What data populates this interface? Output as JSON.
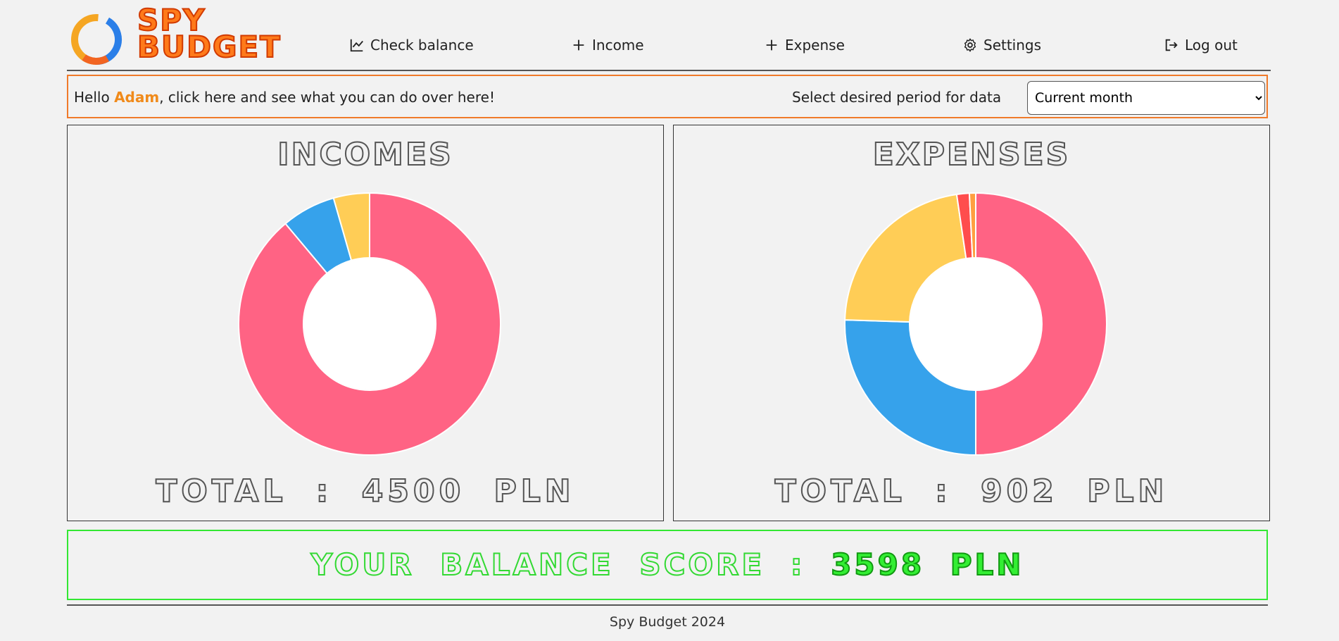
{
  "brand": {
    "line1": "SPY",
    "line2": "BUDGET"
  },
  "nav": {
    "check_balance": "Check balance",
    "income": "Income",
    "expense": "Expense",
    "settings": "Settings",
    "logout": "Log out",
    "icons": [
      "chart-line-icon",
      "plus-icon",
      "plus-icon",
      "gear-icon",
      "logout-icon"
    ]
  },
  "greeting": {
    "prefix": "Hello ",
    "name": "Adam",
    "suffix": ", click here and see what you can do over here!"
  },
  "period": {
    "label": "Select desired period for data",
    "selected": "Current month"
  },
  "incomes": {
    "title": "INCOMES",
    "total_label": "TOTAL :",
    "total_value": "4500 PLN"
  },
  "expenses": {
    "title": "EXPENSES",
    "total_label": "TOTAL :",
    "total_value": "902 PLN"
  },
  "balance": {
    "label": "YOUR BALANCE SCORE :",
    "value": "3598 PLN",
    "color": "#33ee33"
  },
  "footer": {
    "text": "Spy Budget 2024"
  },
  "chart_data": [
    {
      "type": "pie",
      "donut": true,
      "values": [
        4000,
        300,
        200
      ],
      "colors": [
        "#ff6384",
        "#36a2eb",
        "#ffcd56"
      ]
    },
    {
      "type": "pie",
      "donut": true,
      "values": [
        451,
        230,
        200,
        14,
        7
      ],
      "colors": [
        "#ff6384",
        "#36a2eb",
        "#ffcd56",
        "#ff4d4d",
        "#ff9f40"
      ]
    }
  ]
}
